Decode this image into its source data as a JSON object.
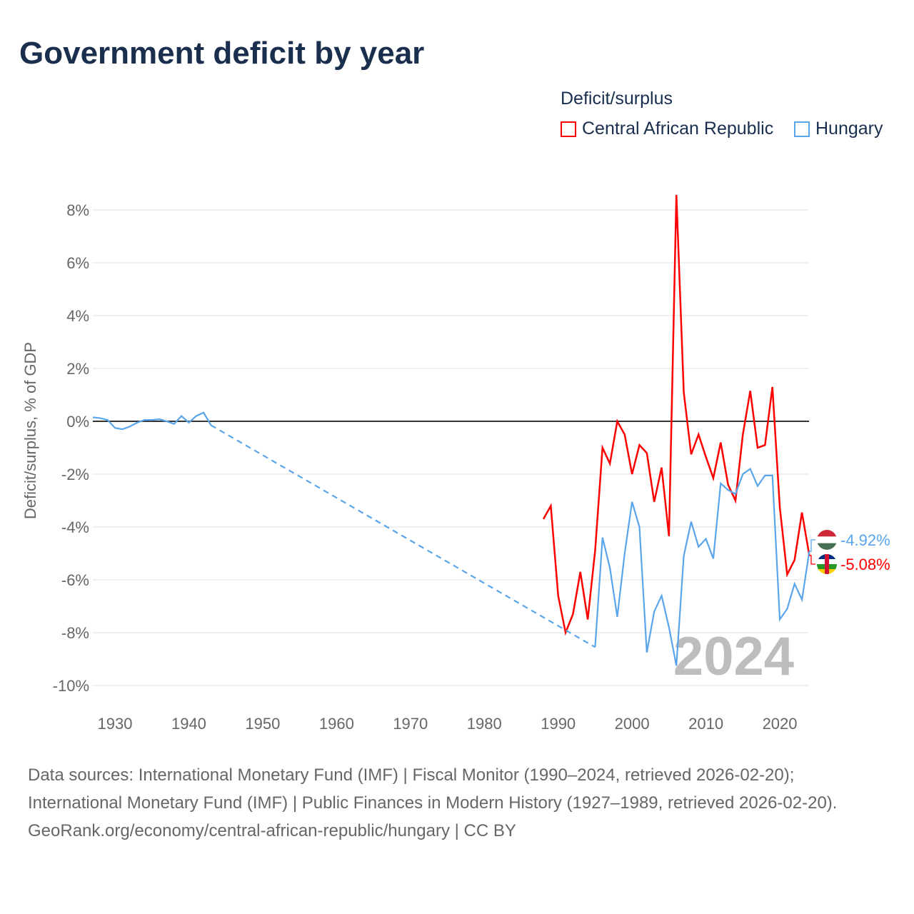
{
  "title": "Government deficit by year",
  "legend": {
    "title": "Deficit/surplus",
    "items": [
      {
        "label": "Central African Republic",
        "color": "#ff0000"
      },
      {
        "label": "Hungary",
        "color": "#5aa5ea"
      }
    ]
  },
  "footer": {
    "sources": "Data sources: International Monetary Fund (IMF) | Fiscal Monitor (1990–2024, retrieved 2026-02-20); International Monetary Fund (IMF) | Public Finances in Modern History (1927–1989, retrieved 2026-02-20).",
    "credit": "GeoRank.org/economy/central-african-republic/hungary | CC BY"
  },
  "chart_data": {
    "type": "line",
    "ylabel": "Deficit/surplus, % of GDP",
    "xlim": [
      1927,
      2024
    ],
    "ylim": [
      -10.8,
      8.6
    ],
    "yticks": [
      8,
      6,
      4,
      2,
      0,
      -2,
      -4,
      -6,
      -8,
      -10
    ],
    "ytick_labels": [
      "8%",
      "6%",
      "4%",
      "2%",
      "0%",
      "-2%",
      "-4%",
      "-6%",
      "-8%",
      "-10%"
    ],
    "xticks": [
      1930,
      1940,
      1950,
      1960,
      1970,
      1980,
      1990,
      2000,
      2010,
      2020
    ],
    "xtick_labels": [
      "1930",
      "1940",
      "1950",
      "1960",
      "1970",
      "1980",
      "1990",
      "2000",
      "2010",
      "2020"
    ],
    "year_watermark": "2024",
    "series": [
      {
        "name": "Central African Republic",
        "color": "#ff0000",
        "end_label": "-5.08%",
        "x": [
          1988,
          1989,
          1990,
          1991,
          1992,
          1993,
          1994,
          1995,
          1996,
          1997,
          1998,
          1999,
          2000,
          2001,
          2002,
          2003,
          2004,
          2005,
          2006,
          2007,
          2008,
          2009,
          2010,
          2011,
          2012,
          2013,
          2014,
          2015,
          2016,
          2017,
          2018,
          2019,
          2020,
          2021,
          2022,
          2023,
          2024
        ],
        "y": [
          -3.7,
          -3.2,
          -6.6,
          -8.0,
          -7.3,
          -5.7,
          -7.5,
          -4.9,
          -1.0,
          -1.6,
          0.0,
          -0.5,
          -2.0,
          -0.9,
          -1.2,
          -3.05,
          -1.75,
          -4.35,
          8.57,
          1.1,
          -1.25,
          -0.5,
          -1.35,
          -2.15,
          -0.8,
          -2.4,
          -3.0,
          -0.5,
          1.15,
          -1.0,
          -0.9,
          1.3,
          -3.25,
          -5.8,
          -5.25,
          -3.45,
          -5.08
        ]
      },
      {
        "name": "Hungary",
        "color": "#5aa5ea",
        "end_label": "-4.92%",
        "gap_after": 1943,
        "x": [
          1927,
          1928,
          1929,
          1930,
          1931,
          1932,
          1933,
          1934,
          1935,
          1936,
          1937,
          1938,
          1939,
          1940,
          1941,
          1942,
          1943,
          1995,
          1996,
          1997,
          1998,
          1999,
          2000,
          2001,
          2002,
          2003,
          2004,
          2005,
          2006,
          2007,
          2008,
          2009,
          2010,
          2011,
          2012,
          2013,
          2014,
          2015,
          2016,
          2017,
          2018,
          2019,
          2020,
          2021,
          2022,
          2023,
          2024
        ],
        "y": [
          0.15,
          0.12,
          0.05,
          -0.25,
          -0.3,
          -0.2,
          -0.05,
          0.05,
          0.05,
          0.08,
          0,
          -0.1,
          0.2,
          -0.05,
          0.2,
          0.33,
          -0.15,
          -8.55,
          -4.4,
          -5.55,
          -7.4,
          -5.0,
          -3.05,
          -4.0,
          -8.75,
          -7.2,
          -6.6,
          -7.8,
          -9.25,
          -5.1,
          -3.8,
          -4.75,
          -4.45,
          -5.2,
          -2.35,
          -2.6,
          -2.75,
          -2.0,
          -1.8,
          -2.45,
          -2.05,
          -2.05,
          -7.5,
          -7.1,
          -6.15,
          -6.75,
          -4.92
        ]
      }
    ]
  }
}
